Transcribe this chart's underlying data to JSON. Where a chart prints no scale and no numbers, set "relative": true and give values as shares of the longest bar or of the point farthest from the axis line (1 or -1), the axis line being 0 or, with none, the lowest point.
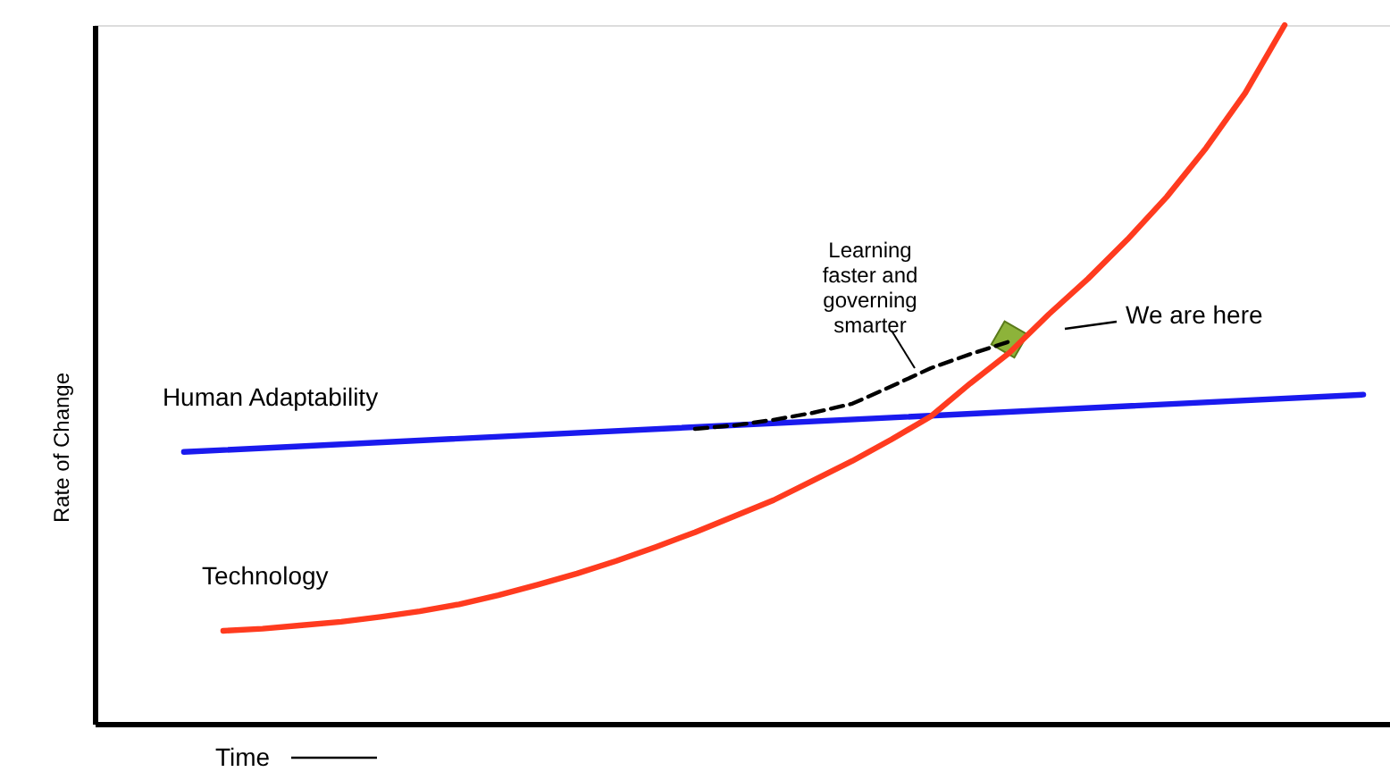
{
  "chart_data": {
    "type": "line",
    "relative": true,
    "tick_labels": false,
    "xlabel": "Time",
    "ylabel": "Rate of Change",
    "categories": [
      null,
      null,
      null,
      null,
      null,
      null,
      null,
      null,
      null,
      null,
      null,
      null,
      null,
      null,
      null,
      null,
      null,
      null,
      null,
      null,
      null,
      null,
      null,
      null,
      null,
      null,
      null,
      null,
      null,
      null,
      null
    ],
    "series": [
      {
        "name": "Human Adaptability",
        "color": "#1a1aee",
        "values": [
          0.389,
          null,
          null,
          null,
          null,
          null,
          null,
          null,
          null,
          null,
          null,
          null,
          null,
          null,
          null,
          null,
          null,
          null,
          null,
          null,
          null,
          null,
          null,
          null,
          null,
          null,
          null,
          null,
          null,
          null,
          0.471
        ]
      },
      {
        "name": "Technology",
        "color": "#ff3b1f",
        "values": [
          null,
          0.133,
          0.136,
          0.141,
          0.146,
          0.153,
          0.161,
          0.171,
          0.184,
          0.199,
          0.215,
          0.233,
          0.253,
          0.274,
          0.297,
          0.32,
          0.348,
          0.376,
          0.407,
          0.44,
          0.487,
          0.531,
          0.586,
          0.637,
          0.693,
          0.754,
          0.824,
          0.903,
          1.0,
          null,
          null
        ]
      },
      {
        "color": "#000000",
        "line_style": "dashed",
        "values": [
          null,
          null,
          null,
          null,
          null,
          null,
          null,
          null,
          null,
          null,
          null,
          null,
          null,
          0.422,
          0.427,
          0.435,
          0.445,
          0.458,
          0.483,
          0.509,
          0.529,
          0.547,
          null,
          null,
          null,
          null,
          null,
          null,
          null,
          null,
          null
        ]
      },
      {
        "marker": "diamond",
        "color": "#8db33a",
        "values": [
          null,
          null,
          null,
          null,
          null,
          null,
          null,
          null,
          null,
          null,
          null,
          null,
          null,
          null,
          null,
          null,
          null,
          null,
          null,
          null,
          null,
          0.55,
          null,
          null,
          null,
          null,
          null,
          null,
          null,
          null,
          null
        ]
      }
    ],
    "annotations": [
      "Learning faster and governing smarter",
      "We are here"
    ]
  }
}
